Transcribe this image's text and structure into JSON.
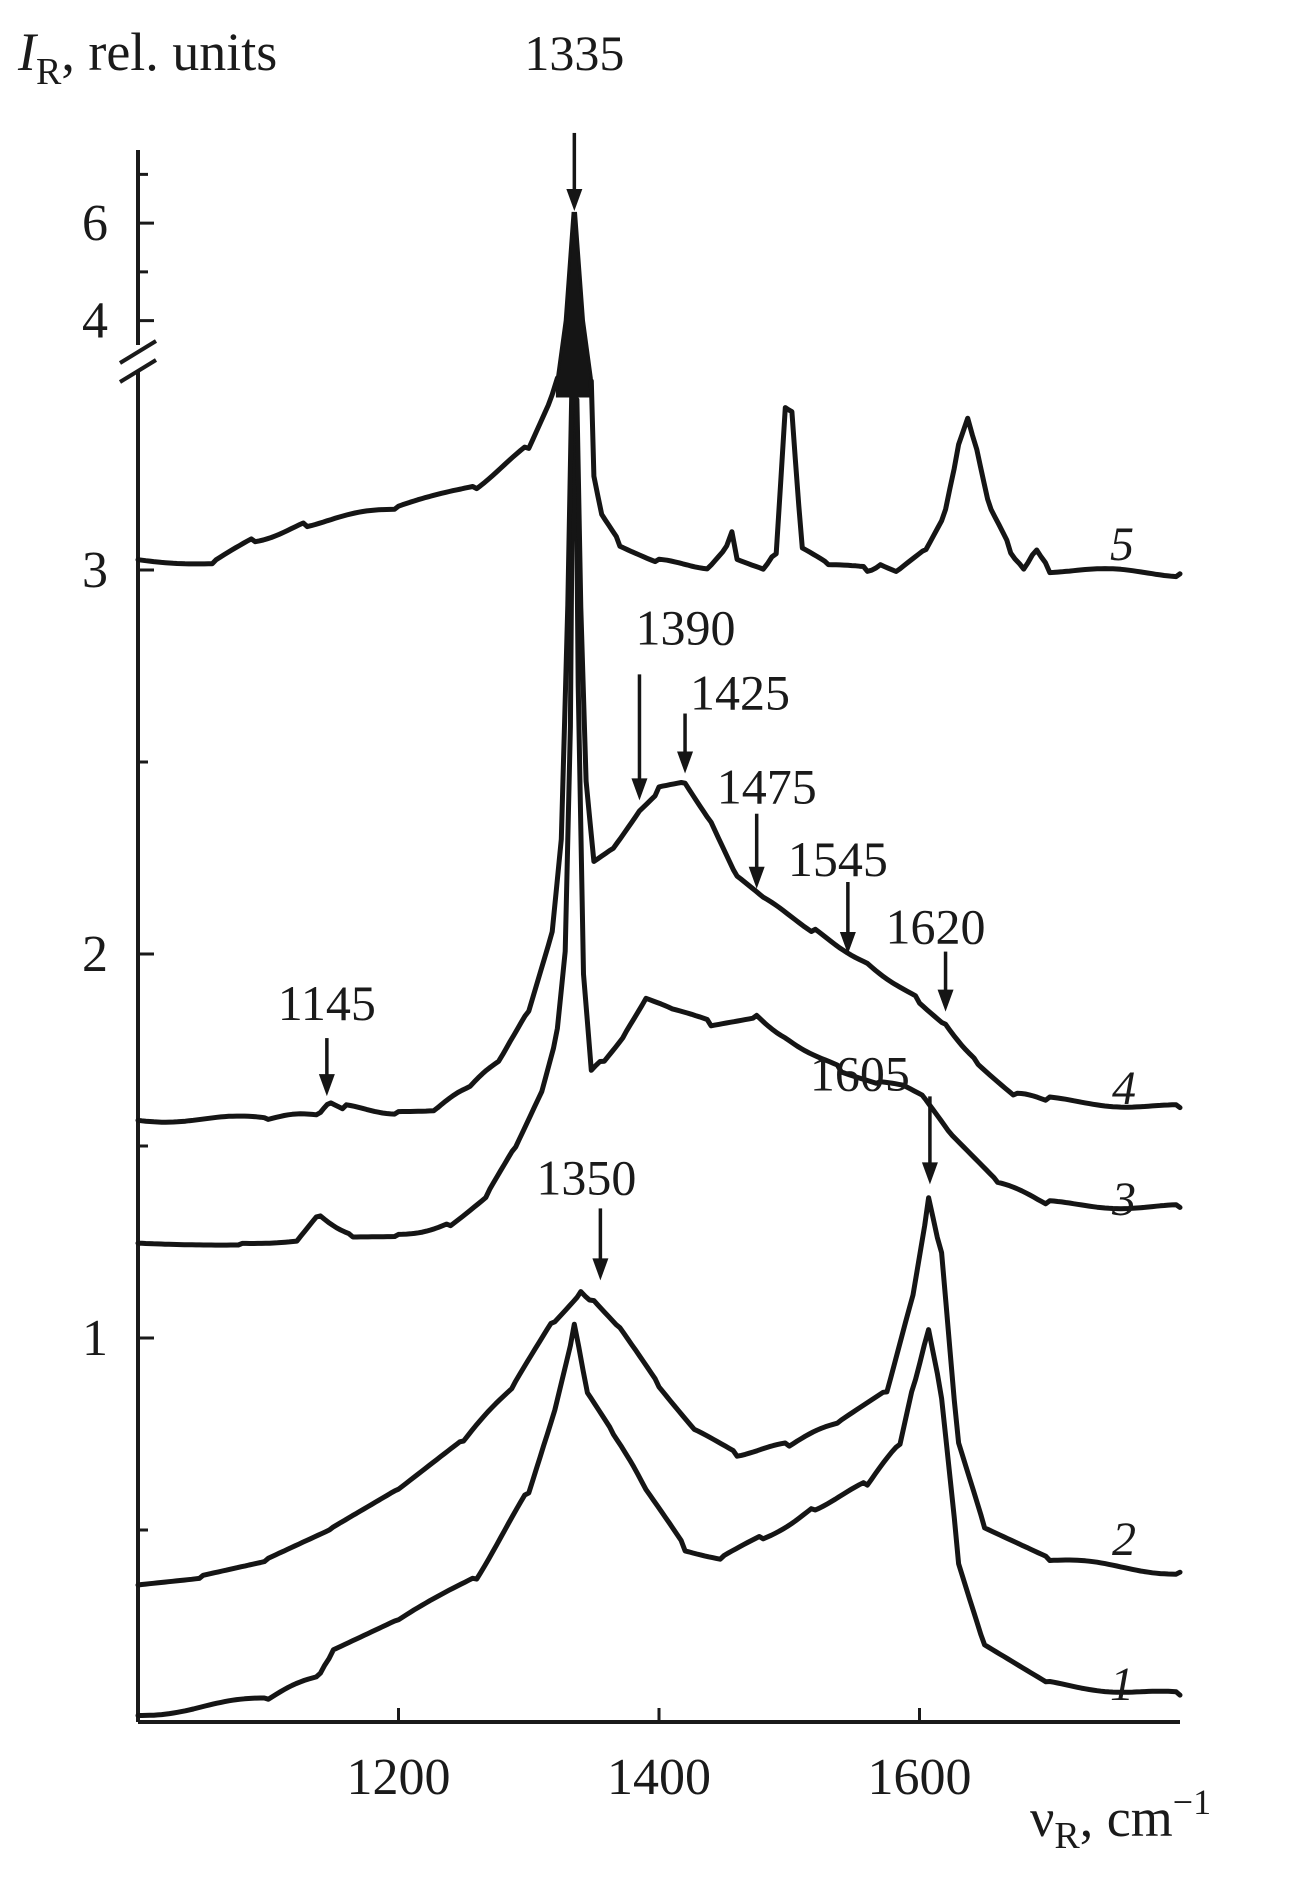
{
  "chart_data": {
    "type": "line",
    "ylabel_symbol": "I",
    "ylabel_sub": "R",
    "ylabel_rest": ", rel. units",
    "xlabel_symbol": "ν",
    "xlabel_sub": "R",
    "xlabel_rest": ", cm",
    "xlabel_sup": "−1",
    "xlim": [
      1000,
      1800
    ],
    "ylim": [
      0,
      3.5
    ],
    "ylim_upper": [
      3.5,
      7.5
    ],
    "x_ticks": [
      {
        "value": 1200,
        "label": "1200"
      },
      {
        "value": 1400,
        "label": "1400"
      },
      {
        "value": 1600,
        "label": "1600"
      }
    ],
    "y_ticks": [
      {
        "value": 1,
        "label": "1"
      },
      {
        "value": 2,
        "label": "2"
      },
      {
        "value": 3,
        "label": "3"
      }
    ],
    "y_ticks_upper": [
      {
        "value": 4,
        "label": "4"
      },
      {
        "value": 6,
        "label": "6"
      }
    ],
    "y_minor_ticks": [
      0.5,
      1.5,
      2.5
    ],
    "y_minor_ticks_upper": [
      5,
      7
    ],
    "series": [
      {
        "name": "1",
        "points": [
          [
            1000,
            0.02
          ],
          [
            1100,
            0.06
          ],
          [
            1140,
            0.12
          ],
          [
            1150,
            0.18
          ],
          [
            1200,
            0.26
          ],
          [
            1260,
            0.38
          ],
          [
            1300,
            0.6
          ],
          [
            1320,
            0.82
          ],
          [
            1335,
            1.03
          ],
          [
            1345,
            0.85
          ],
          [
            1365,
            0.75
          ],
          [
            1390,
            0.6
          ],
          [
            1420,
            0.45
          ],
          [
            1450,
            0.43
          ],
          [
            1480,
            0.48
          ],
          [
            1520,
            0.56
          ],
          [
            1560,
            0.62
          ],
          [
            1585,
            0.72
          ],
          [
            1597,
            0.9
          ],
          [
            1607,
            1.03
          ],
          [
            1617,
            0.85
          ],
          [
            1630,
            0.42
          ],
          [
            1650,
            0.2
          ],
          [
            1700,
            0.1
          ],
          [
            1800,
            0.07
          ]
        ]
      },
      {
        "name": "2",
        "points": [
          [
            1000,
            0.36
          ],
          [
            1050,
            0.38
          ],
          [
            1100,
            0.42
          ],
          [
            1150,
            0.5
          ],
          [
            1200,
            0.6
          ],
          [
            1250,
            0.73
          ],
          [
            1290,
            0.88
          ],
          [
            1320,
            1.05
          ],
          [
            1340,
            1.12
          ],
          [
            1350,
            1.1
          ],
          [
            1370,
            1.02
          ],
          [
            1400,
            0.88
          ],
          [
            1430,
            0.75
          ],
          [
            1460,
            0.7
          ],
          [
            1500,
            0.72
          ],
          [
            1540,
            0.78
          ],
          [
            1575,
            0.86
          ],
          [
            1595,
            1.12
          ],
          [
            1607,
            1.36
          ],
          [
            1617,
            1.22
          ],
          [
            1630,
            0.72
          ],
          [
            1650,
            0.5
          ],
          [
            1700,
            0.42
          ],
          [
            1800,
            0.39
          ]
        ]
      },
      {
        "name": "3",
        "points": [
          [
            1000,
            1.25
          ],
          [
            1080,
            1.25
          ],
          [
            1125,
            1.26
          ],
          [
            1140,
            1.32
          ],
          [
            1165,
            1.27
          ],
          [
            1200,
            1.27
          ],
          [
            1240,
            1.3
          ],
          [
            1270,
            1.38
          ],
          [
            1290,
            1.5
          ],
          [
            1310,
            1.65
          ],
          [
            1322,
            1.8
          ],
          [
            1328,
            2.0
          ],
          [
            1332,
            2.6
          ],
          [
            1334,
            3.45
          ],
          [
            1336,
            3.45
          ],
          [
            1338,
            2.7
          ],
          [
            1342,
            1.95
          ],
          [
            1348,
            1.7
          ],
          [
            1358,
            1.72
          ],
          [
            1375,
            1.8
          ],
          [
            1390,
            1.88
          ],
          [
            1410,
            1.85
          ],
          [
            1440,
            1.82
          ],
          [
            1475,
            1.84
          ],
          [
            1500,
            1.78
          ],
          [
            1540,
            1.7
          ],
          [
            1570,
            1.66
          ],
          [
            1590,
            1.65
          ],
          [
            1605,
            1.62
          ],
          [
            1625,
            1.52
          ],
          [
            1660,
            1.4
          ],
          [
            1700,
            1.35
          ],
          [
            1800,
            1.34
          ]
        ]
      },
      {
        "name": "4",
        "points": [
          [
            1000,
            1.57
          ],
          [
            1100,
            1.57
          ],
          [
            1140,
            1.58
          ],
          [
            1148,
            1.62
          ],
          [
            1160,
            1.6
          ],
          [
            1200,
            1.59
          ],
          [
            1230,
            1.6
          ],
          [
            1255,
            1.65
          ],
          [
            1280,
            1.73
          ],
          [
            1300,
            1.85
          ],
          [
            1318,
            2.05
          ],
          [
            1325,
            2.3
          ],
          [
            1330,
            2.9
          ],
          [
            1333,
            3.45
          ],
          [
            1337,
            3.45
          ],
          [
            1340,
            2.9
          ],
          [
            1344,
            2.45
          ],
          [
            1350,
            2.24
          ],
          [
            1365,
            2.28
          ],
          [
            1385,
            2.38
          ],
          [
            1400,
            2.43
          ],
          [
            1420,
            2.45
          ],
          [
            1440,
            2.35
          ],
          [
            1460,
            2.2
          ],
          [
            1480,
            2.14
          ],
          [
            1520,
            2.06
          ],
          [
            1560,
            1.98
          ],
          [
            1600,
            1.88
          ],
          [
            1620,
            1.82
          ],
          [
            1645,
            1.72
          ],
          [
            1675,
            1.63
          ],
          [
            1700,
            1.62
          ],
          [
            1800,
            1.6
          ]
        ]
      },
      {
        "name": "5",
        "points": [
          [
            1000,
            3.03
          ],
          [
            1060,
            3.02
          ],
          [
            1090,
            3.08
          ],
          [
            1130,
            3.12
          ],
          [
            1200,
            3.16
          ],
          [
            1260,
            3.22
          ],
          [
            1300,
            3.32
          ],
          [
            1318,
            3.45
          ],
          [
            1322,
            3.5
          ]
        ],
        "break_points": [
          [
            1322,
            3.5
          ],
          [
            1328,
            4.0
          ],
          [
            1334,
            6.2
          ],
          [
            1336,
            6.2
          ],
          [
            1342,
            4.0
          ],
          [
            1348,
            3.5
          ]
        ],
        "tail_points": [
          [
            1348,
            3.5
          ],
          [
            1350,
            3.25
          ],
          [
            1356,
            3.15
          ],
          [
            1370,
            3.07
          ],
          [
            1400,
            3.02
          ],
          [
            1440,
            3.01
          ],
          [
            1452,
            3.06
          ],
          [
            1456,
            3.1
          ],
          [
            1460,
            3.03
          ],
          [
            1480,
            3.01
          ],
          [
            1490,
            3.05
          ],
          [
            1497,
            3.42
          ],
          [
            1502,
            3.42
          ],
          [
            1510,
            3.05
          ],
          [
            1530,
            3.01
          ],
          [
            1560,
            3.0
          ],
          [
            1570,
            3.02
          ],
          [
            1585,
            3.0
          ],
          [
            1605,
            3.06
          ],
          [
            1620,
            3.15
          ],
          [
            1630,
            3.32
          ],
          [
            1637,
            3.4
          ],
          [
            1644,
            3.32
          ],
          [
            1655,
            3.15
          ],
          [
            1670,
            3.05
          ],
          [
            1680,
            3.01
          ],
          [
            1690,
            3.06
          ],
          [
            1700,
            3.0
          ],
          [
            1800,
            2.99
          ]
        ]
      }
    ],
    "annotations": [
      {
        "text": "1335",
        "x": 1335,
        "y_head": 6.25,
        "upper": true
      },
      {
        "text": "1145",
        "x": 1145,
        "y_head": 1.63
      },
      {
        "text": "1350",
        "x": 1355,
        "y_head": 1.15
      },
      {
        "text": "1605",
        "x": 1608,
        "y_head": 1.4
      },
      {
        "text": "1390",
        "x": 1385,
        "y_head": 2.4
      },
      {
        "text": "1425",
        "x": 1420,
        "y_head": 2.47
      },
      {
        "text": "1475",
        "x": 1475,
        "y_head": 2.17
      },
      {
        "text": "1545",
        "x": 1545,
        "y_head": 2.0
      },
      {
        "text": "1620",
        "x": 1620,
        "y_head": 1.85
      }
    ]
  }
}
